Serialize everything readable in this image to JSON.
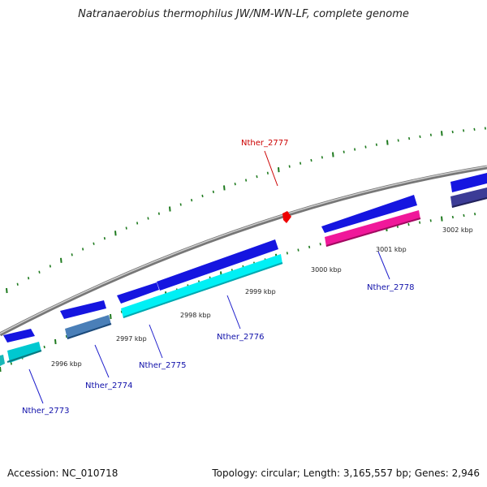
{
  "title": "Natranaerobius thermophilus JW/NM-WN-LF, complete genome",
  "footer": {
    "accession": "Accession: NC_010718",
    "stats": "Topology: circular; Length: 3,165,557 bp; Genes: 2,946"
  },
  "colors": {
    "backbone": "#8a8a8a",
    "ticks": "#1e7a1e",
    "highlight": "#cc0000",
    "gene_label": "#1010aa",
    "forward_gene": "#1515e0",
    "cyan_gene": "#00e5f0",
    "teal_gene": "#18b8b8",
    "steel_gene": "#4a7fb8",
    "pink_gene": "#f0189a",
    "navy_gene": "#3c3c96"
  },
  "scale_labels": [
    "2996 kbp",
    "2997 kbp",
    "2998 kbp",
    "2999 kbp",
    "3000 kbp",
    "3001 kbp",
    "3002 kbp"
  ],
  "genes": [
    {
      "id": "Nther_2773",
      "color": "cyan_gene"
    },
    {
      "id": "Nther_2774",
      "color": "steel_gene"
    },
    {
      "id": "Nther_2775",
      "color": "cyan_gene"
    },
    {
      "id": "Nther_2776",
      "color": "cyan_gene"
    },
    {
      "id": "Nther_2777",
      "color": "highlight",
      "highlighted": true
    },
    {
      "id": "Nther_2778",
      "color": "pink_gene"
    }
  ]
}
